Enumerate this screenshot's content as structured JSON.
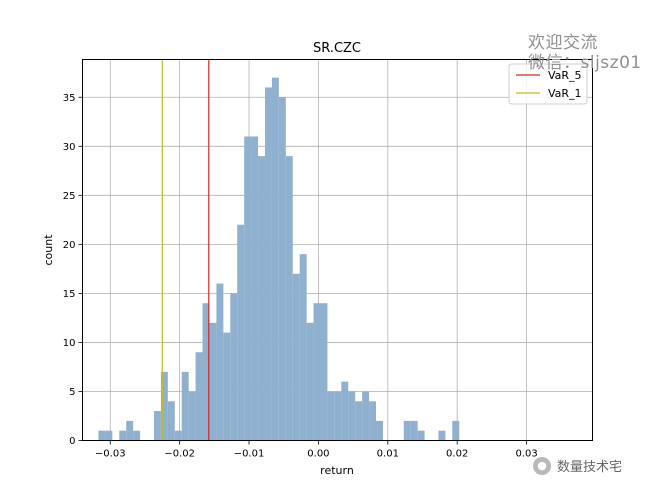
{
  "chart_data": {
    "type": "bar",
    "title": "SR.CZC",
    "xlabel": "return",
    "ylabel": "count",
    "xlim": [
      -0.034,
      0.0395
    ],
    "ylim": [
      0,
      38.85
    ],
    "xticks": [
      -0.03,
      -0.02,
      -0.01,
      0.0,
      0.01,
      0.02,
      0.03
    ],
    "xtick_labels": [
      "−0.03",
      "−0.02",
      "−0.01",
      "0.00",
      "0.01",
      "0.02",
      "0.03"
    ],
    "yticks": [
      0,
      5,
      10,
      15,
      20,
      25,
      30,
      35
    ],
    "ytick_labels": [
      "0",
      "5",
      "10",
      "15",
      "20",
      "25",
      "30",
      "35"
    ],
    "grid": true,
    "bin_start": -0.0317,
    "bin_width": 0.001,
    "counts": [
      1,
      1,
      0,
      1,
      2,
      1,
      0,
      0,
      3,
      7,
      4,
      1,
      7,
      5,
      9,
      14,
      12,
      16,
      11,
      15,
      22,
      31,
      31,
      29,
      36,
      37,
      35,
      29,
      17,
      19,
      12,
      14,
      14,
      5,
      5,
      6,
      5,
      4,
      5,
      4,
      2,
      0,
      0,
      0,
      2,
      2,
      1,
      0,
      0,
      1,
      0,
      2
    ],
    "bar_color": "#8fb0cf",
    "vlines": [
      {
        "name": "VaR_5",
        "x": -0.0158,
        "color": "#d62728"
      },
      {
        "name": "VaR_1",
        "x": -0.0225,
        "color": "#bcbd22"
      }
    ],
    "legend_position": "upper right"
  },
  "watermark": {
    "line1": "欢迎交流",
    "line2": "微信：sljsz01"
  },
  "footer": {
    "icon": "wechat-icon",
    "text": "数量技术宅"
  }
}
